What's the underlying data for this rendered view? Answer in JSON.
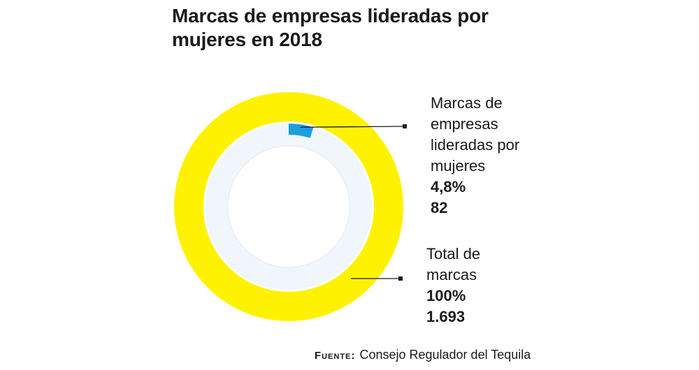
{
  "title": "Marcas de empresas lideradas por mujeres en 2018",
  "chart_data": {
    "type": "pie",
    "title": "Marcas de empresas lideradas por mujeres en 2018",
    "series": [
      {
        "name": "Marcas de empresas lideradas por mujeres",
        "label": "Marcas de empresas lideradas por mujeres",
        "percent_label": "4,8%",
        "percent": 4.8,
        "count_label": "82",
        "count": 82,
        "color": "#1c9ee0"
      },
      {
        "name": "Total de marcas",
        "label": "Total de marcas",
        "percent_label": "100%",
        "percent": 100,
        "count_label": "1.693",
        "count": 1693,
        "color": "#fff200"
      }
    ],
    "inner_track_color": "#f0f6fb"
  },
  "source": {
    "label": "Fuente:",
    "text": "Consejo Regulador del Tequila"
  }
}
